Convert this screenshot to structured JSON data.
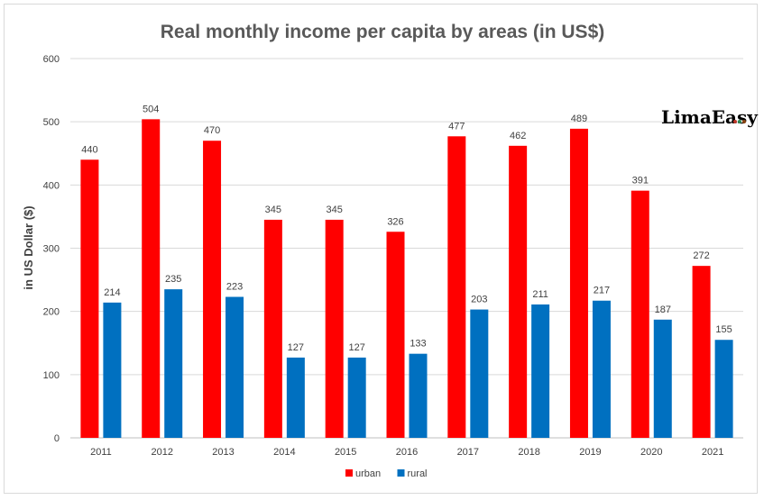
{
  "chart_data": {
    "type": "bar",
    "title": "Real monthly income per capita by areas (in US$)",
    "xlabel": "",
    "ylabel": "in US Dollar ($)",
    "ylim": [
      0,
      600
    ],
    "yticks": [
      0,
      100,
      200,
      300,
      400,
      500,
      600
    ],
    "grid": true,
    "legend_position": "bottom",
    "categories": [
      "2011",
      "2012",
      "2013",
      "2014",
      "2015",
      "2016",
      "2017",
      "2018",
      "2019",
      "2020",
      "2021"
    ],
    "series": [
      {
        "name": "urban",
        "color": "#ff0000",
        "values": [
          440,
          504,
          470,
          345,
          345,
          326,
          477,
          462,
          489,
          391,
          272
        ]
      },
      {
        "name": "rural",
        "color": "#0070c0",
        "values": [
          214,
          235,
          223,
          127,
          127,
          133,
          203,
          211,
          217,
          187,
          155
        ]
      }
    ]
  },
  "logo": {
    "text": "LimaEasy",
    "dot_colors": [
      "#c0392b",
      "#2e8b57",
      "#8b4513"
    ]
  }
}
